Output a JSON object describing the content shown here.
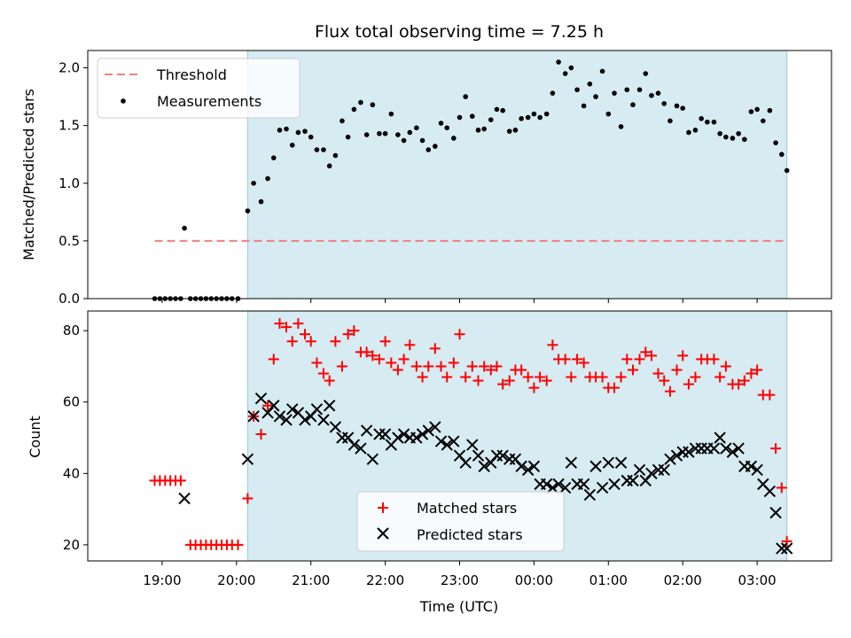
{
  "chart_data": {
    "title": "Flux total observing time = 7.25 h",
    "xlabel": "Time (UTC)",
    "x_ticks": [
      "19:00",
      "20:00",
      "21:00",
      "22:00",
      "23:00",
      "00:00",
      "01:00",
      "02:00",
      "03:00"
    ],
    "x_tick_hours": [
      19,
      20,
      21,
      22,
      23,
      24,
      25,
      26,
      27
    ],
    "xlim_hours": [
      18.0,
      28.0
    ],
    "observing_window_hours": [
      20.15,
      27.4
    ],
    "panels": [
      {
        "type": "scatter",
        "ylabel": "Matched/Predicted stars",
        "ylim": [
          0,
          2.15
        ],
        "y_ticks": [
          "0.0",
          "0.5",
          "1.0",
          "1.5",
          "2.0"
        ],
        "y_tick_values": [
          0,
          0.5,
          1.0,
          1.5,
          2.0
        ],
        "legend": {
          "position": "upper-left",
          "entries": [
            "Threshold",
            "Measurements"
          ]
        },
        "threshold": {
          "name": "Threshold",
          "value": 0.5,
          "x_range_hours": [
            18.9,
            27.35
          ],
          "color": "#f08080"
        },
        "measurements": {
          "name": "Measurements",
          "color": "#000000",
          "x_hours": [
            18.9,
            18.97,
            19.04,
            19.11,
            19.18,
            19.25,
            19.3,
            19.38,
            19.45,
            19.52,
            19.59,
            19.66,
            19.73,
            19.8,
            19.87,
            19.94,
            20.02,
            20.15,
            20.23,
            20.33,
            20.42,
            20.5,
            20.58,
            20.67,
            20.75,
            20.83,
            20.92,
            21.0,
            21.08,
            21.17,
            21.25,
            21.33,
            21.42,
            21.5,
            21.58,
            21.67,
            21.75,
            21.83,
            21.92,
            22.0,
            22.08,
            22.17,
            22.25,
            22.33,
            22.42,
            22.5,
            22.58,
            22.67,
            22.75,
            22.83,
            22.92,
            23.0,
            23.08,
            23.17,
            23.25,
            23.33,
            23.42,
            23.5,
            23.58,
            23.67,
            23.75,
            23.83,
            23.92,
            24.0,
            24.08,
            24.17,
            24.25,
            24.33,
            24.42,
            24.5,
            24.58,
            24.67,
            24.75,
            24.83,
            24.92,
            25.0,
            25.08,
            25.17,
            25.25,
            25.33,
            25.42,
            25.5,
            25.58,
            25.67,
            25.75,
            25.83,
            25.92,
            26.0,
            26.08,
            26.17,
            26.25,
            26.33,
            26.42,
            26.5,
            26.58,
            26.67,
            26.75,
            26.83,
            26.92,
            27.0,
            27.08,
            27.17,
            27.25,
            27.33,
            27.4
          ],
          "y": [
            0,
            0,
            0,
            0,
            0,
            0,
            0.61,
            0,
            0,
            0,
            0,
            0,
            0,
            0,
            0,
            0,
            0,
            0.76,
            1.0,
            0.84,
            1.04,
            1.22,
            1.46,
            1.47,
            1.33,
            1.44,
            1.45,
            1.4,
            1.29,
            1.29,
            1.15,
            1.24,
            1.54,
            1.4,
            1.64,
            1.7,
            1.42,
            1.68,
            1.43,
            1.43,
            1.6,
            1.42,
            1.37,
            1.44,
            1.48,
            1.37,
            1.29,
            1.32,
            1.52,
            1.48,
            1.39,
            1.57,
            1.75,
            1.58,
            1.46,
            1.47,
            1.55,
            1.64,
            1.63,
            1.45,
            1.46,
            1.56,
            1.57,
            1.6,
            1.57,
            1.6,
            1.78,
            2.05,
            1.95,
            2.0,
            1.81,
            1.67,
            1.86,
            1.75,
            1.97,
            1.6,
            1.78,
            1.49,
            1.81,
            1.68,
            1.81,
            1.95,
            1.76,
            1.78,
            1.69,
            1.54,
            1.67,
            1.65,
            1.44,
            1.46,
            1.56,
            1.53,
            1.53,
            1.43,
            1.4,
            1.39,
            1.43,
            1.38,
            1.62,
            1.64,
            1.54,
            1.63,
            1.35,
            1.25,
            1.11
          ]
        }
      },
      {
        "type": "scatter",
        "ylabel": "Count",
        "ylim": [
          15.5,
          85.5
        ],
        "y_ticks": [
          "20",
          "40",
          "60",
          "80"
        ],
        "y_tick_values": [
          20,
          40,
          60,
          80
        ],
        "legend": {
          "position": "lower-center",
          "entries": [
            "Matched stars",
            "Predicted stars"
          ]
        },
        "series": [
          {
            "name": "Matched stars",
            "marker": "plus",
            "color": "#ff0000",
            "x_hours": [
              18.9,
              18.97,
              19.04,
              19.11,
              19.18,
              19.25,
              19.38,
              19.45,
              19.52,
              19.59,
              19.66,
              19.73,
              19.8,
              19.87,
              19.94,
              20.02,
              20.15,
              20.23,
              20.33,
              20.42,
              20.5,
              20.58,
              20.67,
              20.75,
              20.83,
              20.92,
              21.0,
              21.08,
              21.17,
              21.25,
              21.33,
              21.42,
              21.5,
              21.58,
              21.67,
              21.75,
              21.83,
              21.92,
              22.0,
              22.08,
              22.17,
              22.25,
              22.33,
              22.42,
              22.5,
              22.58,
              22.67,
              22.75,
              22.83,
              22.92,
              23.0,
              23.08,
              23.17,
              23.25,
              23.33,
              23.42,
              23.5,
              23.58,
              23.67,
              23.75,
              23.83,
              23.92,
              24.0,
              24.08,
              24.17,
              24.25,
              24.33,
              24.42,
              24.5,
              24.58,
              24.67,
              24.75,
              24.83,
              24.92,
              25.0,
              25.08,
              25.17,
              25.25,
              25.33,
              25.42,
              25.5,
              25.58,
              25.67,
              25.75,
              25.83,
              25.92,
              26.0,
              26.08,
              26.17,
              26.25,
              26.33,
              26.42,
              26.5,
              26.58,
              26.67,
              26.75,
              26.83,
              26.92,
              27.0,
              27.08,
              27.17,
              27.25,
              27.33,
              27.4
            ],
            "y": [
              38,
              38,
              38,
              38,
              38,
              38,
              20,
              20,
              20,
              20,
              20,
              20,
              20,
              20,
              20,
              20,
              33,
              56,
              51,
              59,
              72,
              82,
              81,
              77,
              82,
              79,
              77,
              71,
              68,
              66,
              77,
              70,
              79,
              80,
              74,
              74,
              73,
              72,
              77,
              71,
              69,
              72,
              76,
              70,
              67,
              70,
              75,
              70,
              67,
              71,
              79,
              67,
              70,
              66,
              70,
              69,
              70,
              65,
              66,
              69,
              69,
              67,
              64,
              67,
              66,
              76,
              72,
              72,
              67,
              72,
              71,
              67,
              67,
              67,
              64,
              64,
              67,
              72,
              69,
              72,
              74,
              73,
              68,
              66,
              63,
              69,
              73,
              65,
              67,
              72,
              72,
              72,
              67,
              70,
              65,
              65,
              66,
              68,
              69,
              62,
              62,
              47,
              36,
              21
            ],
            "note_x_for_last_points_adjusted": true
          },
          {
            "name": "Predicted stars",
            "marker": "x",
            "color": "#000000",
            "x_hours": [
              19.3,
              20.15,
              20.23,
              20.33,
              20.42,
              20.5,
              20.58,
              20.67,
              20.75,
              20.83,
              20.92,
              21.0,
              21.08,
              21.17,
              21.25,
              21.33,
              21.42,
              21.5,
              21.58,
              21.67,
              21.75,
              21.83,
              21.92,
              22.0,
              22.08,
              22.17,
              22.25,
              22.33,
              22.42,
              22.5,
              22.58,
              22.67,
              22.75,
              22.83,
              22.92,
              23.0,
              23.08,
              23.17,
              23.25,
              23.33,
              23.42,
              23.5,
              23.58,
              23.67,
              23.75,
              23.83,
              23.92,
              24.0,
              24.08,
              24.17,
              24.25,
              24.33,
              24.42,
              24.5,
              24.58,
              24.67,
              24.75,
              24.83,
              24.92,
              25.0,
              25.08,
              25.17,
              25.25,
              25.33,
              25.42,
              25.5,
              25.58,
              25.67,
              25.75,
              25.83,
              25.92,
              26.0,
              26.08,
              26.17,
              26.25,
              26.33,
              26.42,
              26.5,
              26.58,
              26.67,
              26.75,
              26.83,
              26.92,
              27.0,
              27.08,
              27.17,
              27.25,
              27.33,
              27.4
            ],
            "y": [
              33,
              44,
              56,
              61,
              57,
              59,
              56,
              55,
              58,
              57,
              55,
              56,
              58,
              55,
              59,
              53,
              50,
              50,
              48,
              47,
              52,
              44,
              51,
              51,
              48,
              50,
              51,
              50,
              50,
              51,
              52,
              53,
              49,
              48,
              49,
              45,
              43,
              48,
              45,
              42,
              43,
              45,
              45,
              44,
              44,
              42,
              41,
              42,
              37,
              37,
              36,
              37,
              36,
              43,
              37,
              37,
              34,
              42,
              36,
              43,
              37,
              43,
              38,
              38,
              41,
              38,
              40,
              41,
              41,
              44,
              45,
              46,
              46,
              47,
              47,
              47,
              47,
              50,
              47,
              46,
              47,
              42,
              42,
              41,
              37,
              35,
              29,
              19,
              19
            ]
          }
        ]
      }
    ]
  }
}
